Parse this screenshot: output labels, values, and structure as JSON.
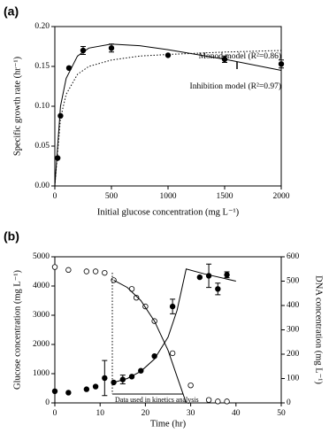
{
  "chart_data": [
    {
      "type": "scatter",
      "label": "(a)",
      "xlabel": "Initial glucose concentration (mg L⁻¹)",
      "ylabel": "Specific growth rate (hr⁻¹)",
      "xlim": [
        0,
        2000
      ],
      "xticks": [
        0,
        500,
        1000,
        1500,
        2000
      ],
      "ylim": [
        0,
        0.2
      ],
      "yticks": [
        {
          "value": 0,
          "label": "0.00"
        },
        0.05,
        {
          "value": 0.1,
          "label": "0.10"
        },
        0.15,
        {
          "value": 0.2,
          "label": "0.20"
        }
      ],
      "series": [
        {
          "x": [
            25,
            50,
            125,
            250,
            500,
            1000,
            1500,
            2000
          ],
          "values": [
            0.035,
            0.088,
            0.148,
            0.17,
            0.173,
            0.164,
            0.159,
            0.153
          ],
          "errors": [
            null,
            null,
            null,
            0.005,
            0.005,
            null,
            0.004,
            0.005
          ],
          "marker": "filled",
          "color": "#000000"
        },
        {
          "name": "Monod model (R²=0.86)",
          "x": [
            0,
            50,
            100,
            200,
            300,
            500,
            750,
            1000,
            1500,
            2000
          ],
          "values": [
            0,
            0.085,
            0.115,
            0.14,
            0.15,
            0.158,
            0.163,
            0.165,
            0.168,
            0.17
          ],
          "line": "dotted",
          "color": "#000000"
        },
        {
          "name": "Inhibition model (R²=0.97)",
          "x": [
            0,
            50,
            100,
            200,
            300,
            500,
            750,
            1000,
            1500,
            2000
          ],
          "values": [
            0,
            0.1,
            0.135,
            0.163,
            0.173,
            0.178,
            0.176,
            0.171,
            0.159,
            0.145
          ],
          "line": "solid",
          "color": "#000000"
        }
      ]
    },
    {
      "type": "scatter",
      "label": "(b)",
      "xlabel": "Time (hr)",
      "ylabel": "Glucose concentration (mg L⁻¹)",
      "y2label": "DNA concentration (mg L⁻¹)",
      "annotation": "Data used in kinetics analysis",
      "xlim": [
        0,
        50
      ],
      "xticks": [
        0,
        10,
        20,
        30,
        40,
        50
      ],
      "ylim": [
        0,
        5000
      ],
      "yticks": [
        0,
        1000,
        2000,
        3000,
        4000,
        5000
      ],
      "y2lim": [
        0,
        600
      ],
      "y2ticks": [
        0,
        100,
        200,
        300,
        400,
        500,
        600
      ],
      "series": [
        {
          "x": [
            0,
            3,
            7,
            9,
            11,
            13,
            17,
            18,
            20,
            22,
            26,
            30,
            34,
            36,
            38
          ],
          "values": [
            4650,
            4550,
            4500,
            4500,
            4450,
            4200,
            3900,
            3600,
            3300,
            2800,
            1700,
            600,
            100,
            50,
            50
          ],
          "marker": "open",
          "color": "#000000"
        },
        {
          "x": [
            0,
            3,
            7,
            9,
            11,
            13,
            15,
            17,
            19,
            22,
            26,
            32,
            34,
            36,
            38
          ],
          "values": [
            48,
            42,
            56,
            67,
            102,
            84,
            96,
            108,
            132,
            192,
            396,
            516,
            522,
            468,
            526
          ],
          "errors": [
            null,
            null,
            null,
            null,
            72,
            null,
            18,
            null,
            null,
            null,
            30,
            null,
            48,
            24,
            12
          ],
          "marker": "filled",
          "axis": "y2",
          "color": "#000000"
        },
        {
          "x": [
            13,
            16,
            19,
            22,
            25,
            27,
            29
          ],
          "values": [
            4200,
            3950,
            3500,
            2800,
            1800,
            900,
            0
          ],
          "line": "solid",
          "color": "#000000"
        },
        {
          "x": [
            13,
            16,
            19,
            22,
            25,
            27,
            29,
            33,
            40
          ],
          "values": [
            84,
            100,
            130,
            180,
            270,
            380,
            550,
            530,
            500
          ],
          "line": "solid",
          "axis": "y2",
          "color": "#000000"
        }
      ]
    }
  ]
}
